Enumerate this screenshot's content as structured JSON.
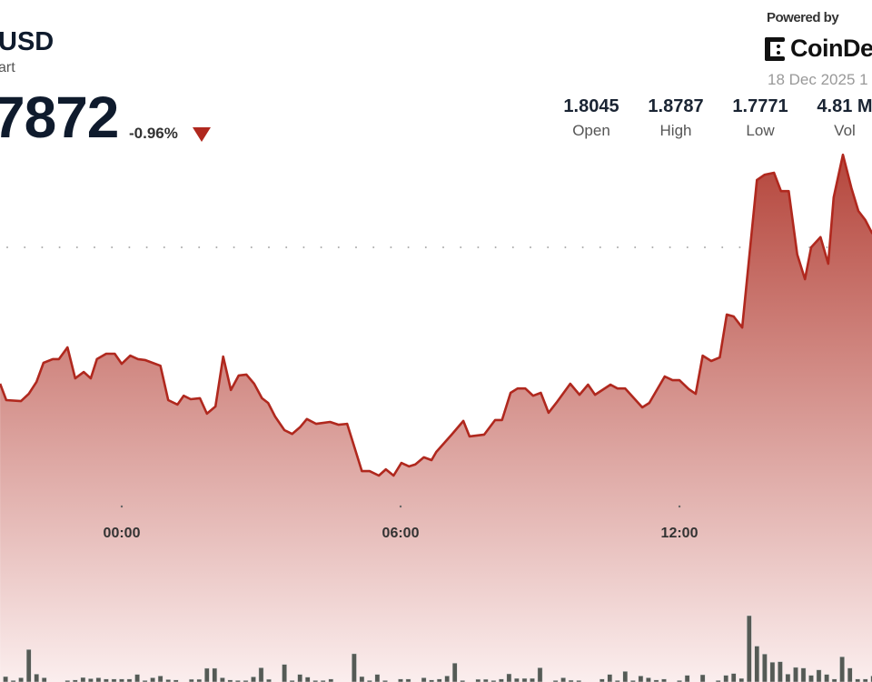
{
  "header": {
    "title": "USD",
    "subtitle": "art",
    "price": "7872",
    "change": "-0.96%",
    "change_direction": "down",
    "powered_by": "Powered by",
    "brand": "CoinDe",
    "date": "18 Dec 2025 1"
  },
  "stats": [
    {
      "value": "1.8045",
      "label": "Open"
    },
    {
      "value": "1.8787",
      "label": "High"
    },
    {
      "value": "1.7771",
      "label": "Low"
    },
    {
      "value": "4.81 M",
      "label": "Vol"
    }
  ],
  "colors": {
    "line": "#b0281e",
    "fill_top": "#b5463c",
    "fill_bottom": "#fbeeee",
    "volume": "#555a55",
    "down": "#b0281e"
  },
  "chart_data": {
    "type": "area",
    "x_tick_labels": [
      "00:00",
      "06:00",
      "12:00"
    ],
    "grid": "dotted horizontal",
    "series": [
      {
        "points": [
          [
            "21:23",
            1.8062
          ],
          [
            "21:31",
            1.801
          ],
          [
            "21:50",
            1.8007
          ],
          [
            "22:00",
            1.803
          ],
          [
            "22:10",
            1.8068
          ],
          [
            "22:19",
            1.8128
          ],
          [
            "22:31",
            1.814
          ],
          [
            "22:39",
            1.814
          ],
          [
            "22:50",
            1.8177
          ],
          [
            "23:00",
            1.8079
          ],
          [
            "23:11",
            1.8099
          ],
          [
            "23:20",
            1.8079
          ],
          [
            "23:28",
            1.814
          ],
          [
            "23:40",
            1.8157
          ],
          [
            "23:51",
            1.8157
          ],
          [
            "00:00",
            1.8125
          ],
          [
            "00:11",
            1.8151
          ],
          [
            "00:21",
            1.814
          ],
          [
            "00:30",
            1.8137
          ],
          [
            "00:50",
            1.8119
          ],
          [
            "01:00",
            1.801
          ],
          [
            "01:12",
            1.7996
          ],
          [
            "01:20",
            1.8024
          ],
          [
            "01:29",
            1.8013
          ],
          [
            "01:41",
            1.8016
          ],
          [
            "01:50",
            1.7967
          ],
          [
            "02:01",
            1.799
          ],
          [
            "02:11",
            1.8148
          ],
          [
            "02:21",
            1.8042
          ],
          [
            "02:31",
            1.8088
          ],
          [
            "02:41",
            1.8091
          ],
          [
            "02:51",
            1.8062
          ],
          [
            "03:01",
            1.8016
          ],
          [
            "03:09",
            1.8001
          ],
          [
            "03:18",
            1.7958
          ],
          [
            "03:30",
            1.7915
          ],
          [
            "03:40",
            1.7903
          ],
          [
            "03:50",
            1.7924
          ],
          [
            "03:59",
            1.795
          ],
          [
            "04:11",
            1.7935
          ],
          [
            "04:29",
            1.7941
          ],
          [
            "04:40",
            1.7932
          ],
          [
            "04:51",
            1.7935
          ],
          [
            "05:10",
            1.7785
          ],
          [
            "05:20",
            1.7785
          ],
          [
            "05:32",
            1.7771
          ],
          [
            "05:41",
            1.7791
          ],
          [
            "05:51",
            1.7771
          ],
          [
            "06:01",
            1.7811
          ],
          [
            "06:11",
            1.78
          ],
          [
            "06:19",
            1.7806
          ],
          [
            "06:30",
            1.7829
          ],
          [
            "06:40",
            1.782
          ],
          [
            "06:46",
            1.7846
          ],
          [
            "07:06",
            1.7901
          ],
          [
            "07:21",
            1.7944
          ],
          [
            "07:29",
            1.7895
          ],
          [
            "07:48",
            1.7901
          ],
          [
            "08:02",
            1.7947
          ],
          [
            "08:11",
            1.7947
          ],
          [
            "08:22",
            1.8033
          ],
          [
            "08:31",
            1.8047
          ],
          [
            "08:41",
            1.8047
          ],
          [
            "08:51",
            1.8024
          ],
          [
            "09:01",
            1.8033
          ],
          [
            "09:11",
            1.797
          ],
          [
            "09:21",
            1.8001
          ],
          [
            "09:39",
            1.8062
          ],
          [
            "09:51",
            1.8027
          ],
          [
            "10:02",
            1.8059
          ],
          [
            "10:11",
            1.8027
          ],
          [
            "10:31",
            1.8059
          ],
          [
            "10:40",
            1.8047
          ],
          [
            "10:50",
            1.8047
          ],
          [
            "11:12",
            1.7987
          ],
          [
            "11:21",
            1.8001
          ],
          [
            "11:41",
            1.8085
          ],
          [
            "11:51",
            1.8073
          ],
          [
            "12:00",
            1.8073
          ],
          [
            "12:12",
            1.8045
          ],
          [
            "12:21",
            1.803
          ],
          [
            "12:30",
            1.8151
          ],
          [
            "12:41",
            1.8134
          ],
          [
            "12:52",
            1.8145
          ],
          [
            "13:01",
            1.8281
          ],
          [
            "13:10",
            1.8275
          ],
          [
            "13:21",
            1.824
          ],
          [
            "13:40",
            1.8707
          ],
          [
            "13:50",
            1.8724
          ],
          [
            "14:02",
            1.873
          ],
          [
            "14:11",
            1.8672
          ],
          [
            "14:21",
            1.8672
          ],
          [
            "14:32",
            1.8471
          ],
          [
            "14:42",
            1.8393
          ],
          [
            "14:50",
            1.8494
          ],
          [
            "15:02",
            1.8526
          ],
          [
            "15:12",
            1.8442
          ],
          [
            "15:19",
            1.8652
          ],
          [
            "15:31",
            1.8787
          ],
          [
            "15:42",
            1.8681
          ],
          [
            "15:51",
            1.8609
          ],
          [
            "16:00",
            1.858
          ],
          [
            "16:09",
            1.8537
          ]
        ]
      }
    ],
    "volume": [
      [
        "21:30",
        18
      ],
      [
        "21:40",
        5
      ],
      [
        "21:50",
        14
      ],
      [
        "22:00",
        107
      ],
      [
        "22:10",
        26
      ],
      [
        "22:20",
        14
      ],
      [
        "22:50",
        5
      ],
      [
        "23:00",
        7
      ],
      [
        "23:10",
        15
      ],
      [
        "23:20",
        11
      ],
      [
        "23:30",
        14
      ],
      [
        "23:40",
        10
      ],
      [
        "23:50",
        10
      ],
      [
        "00:00",
        10
      ],
      [
        "00:10",
        10
      ],
      [
        "00:20",
        25
      ],
      [
        "00:30",
        5
      ],
      [
        "00:40",
        14
      ],
      [
        "00:50",
        20
      ],
      [
        "01:00",
        8
      ],
      [
        "01:10",
        7
      ],
      [
        "01:30",
        9
      ],
      [
        "01:40",
        9
      ],
      [
        "01:50",
        45
      ],
      [
        "02:00",
        45
      ],
      [
        "02:10",
        14
      ],
      [
        "02:20",
        7
      ],
      [
        "02:30",
        5
      ],
      [
        "02:40",
        5
      ],
      [
        "02:50",
        17
      ],
      [
        "03:00",
        47
      ],
      [
        "03:10",
        9
      ],
      [
        "03:30",
        58
      ],
      [
        "03:40",
        5
      ],
      [
        "03:50",
        25
      ],
      [
        "04:00",
        16
      ],
      [
        "04:10",
        5
      ],
      [
        "04:20",
        5
      ],
      [
        "04:30",
        10
      ],
      [
        "05:00",
        93
      ],
      [
        "05:10",
        18
      ],
      [
        "05:20",
        5
      ],
      [
        "05:30",
        25
      ],
      [
        "05:40",
        5
      ],
      [
        "06:00",
        10
      ],
      [
        "06:10",
        10
      ],
      [
        "06:30",
        14
      ],
      [
        "06:40",
        7
      ],
      [
        "06:50",
        10
      ],
      [
        "07:00",
        20
      ],
      [
        "07:10",
        62
      ],
      [
        "07:20",
        5
      ],
      [
        "07:40",
        9
      ],
      [
        "07:50",
        9
      ],
      [
        "08:00",
        5
      ],
      [
        "08:10",
        10
      ],
      [
        "08:20",
        27
      ],
      [
        "08:30",
        12
      ],
      [
        "08:40",
        12
      ],
      [
        "08:50",
        12
      ],
      [
        "09:00",
        47
      ],
      [
        "09:20",
        5
      ],
      [
        "09:30",
        14
      ],
      [
        "09:40",
        6
      ],
      [
        "09:50",
        5
      ],
      [
        "10:20",
        10
      ],
      [
        "10:30",
        25
      ],
      [
        "10:40",
        5
      ],
      [
        "10:50",
        35
      ],
      [
        "11:00",
        5
      ],
      [
        "11:10",
        20
      ],
      [
        "11:20",
        14
      ],
      [
        "11:30",
        7
      ],
      [
        "11:40",
        10
      ],
      [
        "12:00",
        5
      ],
      [
        "12:10",
        22
      ],
      [
        "12:30",
        24
      ],
      [
        "12:50",
        5
      ],
      [
        "13:00",
        22
      ],
      [
        "13:10",
        28
      ],
      [
        "13:20",
        12
      ],
      [
        "13:30",
        218
      ],
      [
        "13:40",
        118
      ],
      [
        "13:50",
        92
      ],
      [
        "14:00",
        65
      ],
      [
        "14:10",
        67
      ],
      [
        "14:20",
        26
      ],
      [
        "14:30",
        48
      ],
      [
        "14:40",
        46
      ],
      [
        "14:50",
        22
      ],
      [
        "15:00",
        40
      ],
      [
        "15:10",
        25
      ],
      [
        "15:20",
        10
      ],
      [
        "15:30",
        83
      ],
      [
        "15:40",
        46
      ],
      [
        "15:50",
        10
      ],
      [
        "16:00",
        10
      ],
      [
        "16:10",
        20
      ]
    ]
  }
}
